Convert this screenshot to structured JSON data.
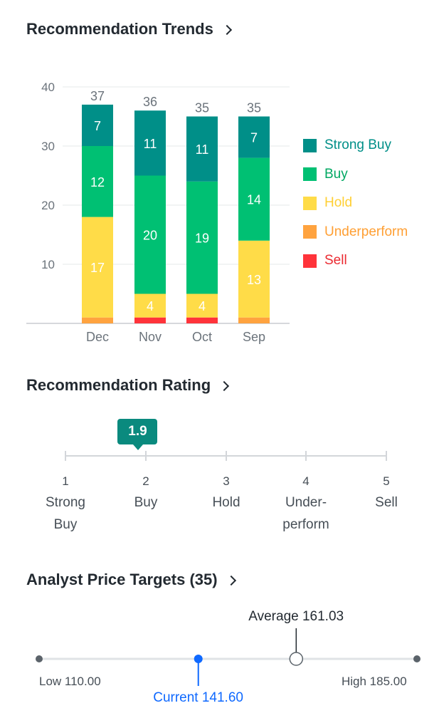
{
  "trends": {
    "title": "Recommendation Trends",
    "chart_data": {
      "type": "bar",
      "stacked": true,
      "categories": [
        "Dec",
        "Nov",
        "Oct",
        "Sep"
      ],
      "totals": [
        37,
        36,
        35,
        35
      ],
      "ylim": [
        0,
        40
      ],
      "yticks": [
        10,
        20,
        30,
        40
      ],
      "grid": true,
      "legend_position": "right",
      "series": [
        {
          "name": "Sell",
          "color": "#ff333a",
          "values": [
            0,
            1,
            1,
            0
          ]
        },
        {
          "name": "Underperform",
          "color": "#ffa33f",
          "values": [
            1,
            0,
            0,
            1
          ]
        },
        {
          "name": "Hold",
          "color": "#ffdc48",
          "values": [
            17,
            4,
            4,
            13
          ]
        },
        {
          "name": "Buy",
          "color": "#00c073",
          "values": [
            12,
            20,
            19,
            14
          ]
        },
        {
          "name": "Strong Buy",
          "color": "#008f88",
          "values": [
            7,
            11,
            11,
            7
          ]
        }
      ]
    },
    "legend": [
      {
        "label": "Strong Buy",
        "color": "#008f88",
        "text_color": "#008f88"
      },
      {
        "label": "Buy",
        "color": "#00c073",
        "text_color": "#00a862"
      },
      {
        "label": "Hold",
        "color": "#ffdc48",
        "text_color": "#ffcf33"
      },
      {
        "label": "Underperform",
        "color": "#ffa33f",
        "text_color": "#ff9f33"
      },
      {
        "label": "Sell",
        "color": "#ff333a",
        "text_color": "#eb2a31"
      }
    ]
  },
  "rating": {
    "title": "Recommendation Rating",
    "value": 1.9,
    "value_label": "1.9",
    "scale": [
      {
        "num": "1",
        "line1": "Strong",
        "line2": "Buy"
      },
      {
        "num": "2",
        "line1": "Buy",
        "line2": ""
      },
      {
        "num": "3",
        "line1": "Hold",
        "line2": ""
      },
      {
        "num": "4",
        "line1": "Under-",
        "line2": "perform"
      },
      {
        "num": "5",
        "line1": "Sell",
        "line2": ""
      }
    ]
  },
  "targets": {
    "title": "Analyst Price Targets (35)",
    "low": 110.0,
    "high": 185.0,
    "current": 141.6,
    "average": 161.03,
    "low_label": "Low 110.00",
    "high_label": "High 185.00",
    "current_label": "Current 141.60",
    "average_label": "Average 161.03"
  }
}
